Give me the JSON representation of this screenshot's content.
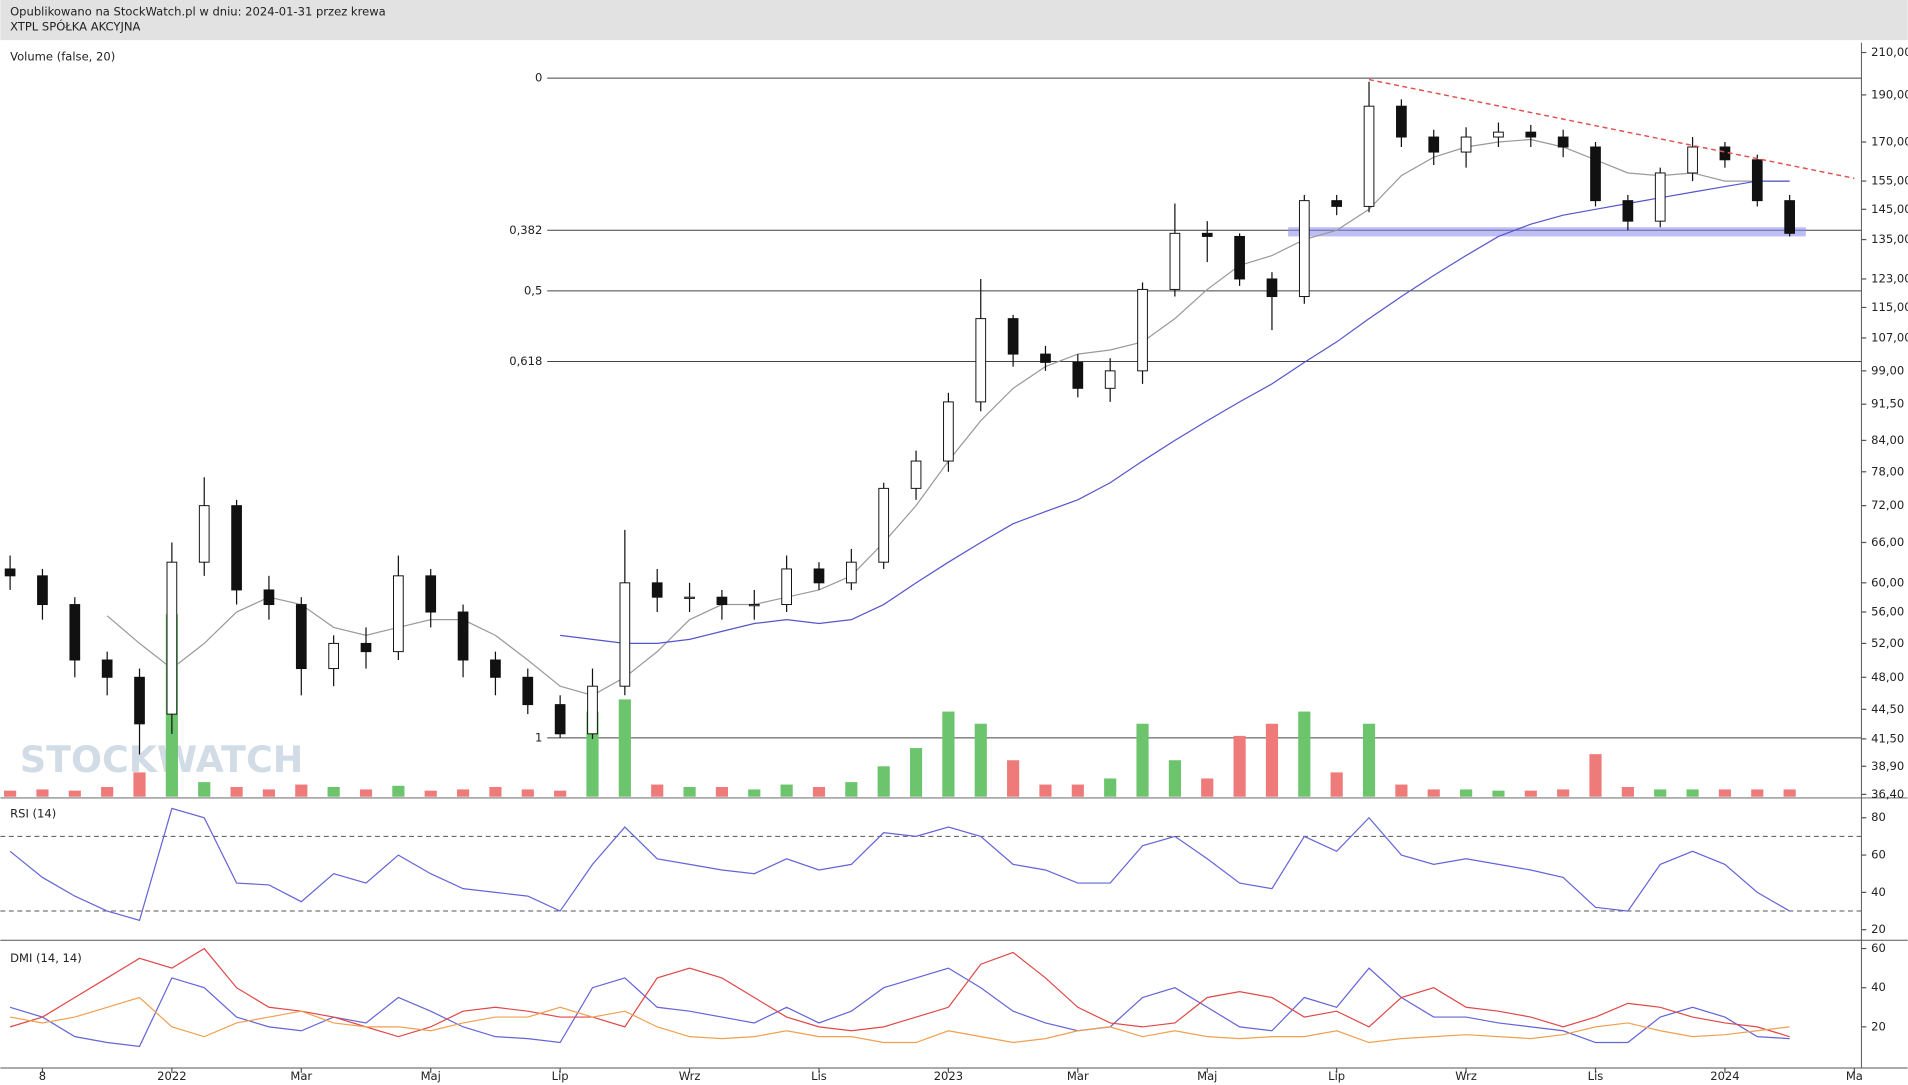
{
  "header": {
    "line1": "Opublikowano na StockWatch.pl w dniu: 2024-01-31 przez krewa",
    "line2": "XTPL SPÓŁKA AKCYJNA"
  },
  "watermark": "STOCKWATCH",
  "chart_data": [
    {
      "type": "candlestick",
      "categories": [
        null,
        "8",
        null,
        null,
        null,
        "2022",
        null,
        null,
        null,
        "Mar",
        null,
        null,
        null,
        "Maj",
        null,
        null,
        null,
        "Lip",
        null,
        null,
        null,
        "Wrz",
        null,
        null,
        null,
        "Lis",
        null,
        null,
        null,
        "2023",
        null,
        null,
        null,
        "Mar",
        null,
        null,
        null,
        "Maj",
        null,
        null,
        null,
        "Lip",
        null,
        null,
        null,
        "Wrz",
        null,
        null,
        null,
        "Lis",
        null,
        null,
        null,
        "2024",
        null,
        null,
        null,
        "Ma"
      ],
      "open": [
        62,
        61,
        57,
        50,
        48,
        44,
        63,
        72,
        59,
        57,
        49,
        52,
        51,
        61,
        56,
        50,
        48,
        45,
        42,
        47,
        60,
        58,
        58,
        57,
        57,
        62,
        60,
        63,
        75,
        80,
        92,
        112,
        103,
        101,
        95,
        99,
        120,
        137,
        136,
        123,
        118,
        148,
        146,
        185,
        172,
        166,
        172,
        174,
        172,
        168,
        148,
        141,
        158,
        168,
        163,
        148,
        null,
        null
      ],
      "high": [
        64,
        62,
        58,
        51,
        49,
        66,
        77,
        73,
        61,
        58,
        53,
        54,
        64,
        62,
        57,
        51,
        49,
        46,
        49,
        68,
        62,
        60,
        59,
        59,
        64,
        63,
        65,
        76,
        82,
        94,
        123,
        113,
        105,
        103,
        102,
        122,
        147,
        141,
        137,
        125,
        150,
        150,
        196,
        188,
        175,
        176,
        178,
        177,
        175,
        170,
        150,
        160,
        172,
        170,
        165,
        150,
        null,
        null
      ],
      "low": [
        59,
        55,
        48,
        46,
        40,
        42,
        61,
        57,
        55,
        46,
        47,
        49,
        50,
        54,
        48,
        46,
        44,
        41.6,
        41.5,
        46,
        56,
        56,
        55,
        55,
        56,
        59,
        59,
        62,
        73,
        78,
        90,
        100,
        99,
        93,
        92,
        96,
        118,
        128,
        121,
        109,
        116,
        143,
        144,
        168,
        161,
        160,
        168,
        168,
        164,
        146,
        138,
        139,
        155,
        160,
        146,
        136,
        null,
        null
      ],
      "close": [
        61,
        57,
        50,
        48,
        43,
        63,
        72,
        59,
        57,
        49,
        52,
        51,
        61,
        56,
        50,
        48,
        45,
        42,
        47,
        60,
        58,
        58,
        57,
        57,
        62,
        60,
        63,
        75,
        80,
        92,
        112,
        103,
        101,
        95,
        99,
        120,
        137,
        136,
        123,
        118,
        148,
        146,
        185,
        172,
        166,
        172,
        174,
        172,
        168,
        148,
        141,
        158,
        168,
        163,
        148,
        137,
        null,
        null
      ],
      "color": "#111111",
      "log_scale": true,
      "ylim": [
        36.2,
        215
      ],
      "yticks": [
        {
          "value": 210,
          "label": "210,00"
        },
        {
          "value": 190,
          "label": "190,00"
        },
        {
          "value": 170,
          "label": "170,00"
        },
        {
          "value": 155,
          "label": "155,00"
        },
        {
          "value": 145,
          "label": "145,00"
        },
        {
          "value": 135,
          "label": "135,00"
        },
        {
          "value": 123,
          "label": "123,00"
        },
        {
          "value": 115,
          "label": "115,00"
        },
        {
          "value": 107,
          "label": "107,00"
        },
        {
          "value": 99,
          "label": "99,00"
        },
        {
          "value": 91.5,
          "label": "91,50"
        },
        {
          "value": 84,
          "label": "84,00"
        },
        {
          "value": 78,
          "label": "78,00"
        },
        {
          "value": 72,
          "label": "72,00"
        },
        {
          "value": 66,
          "label": "66,00"
        },
        {
          "value": 60,
          "label": "60,00"
        },
        {
          "value": 56,
          "label": "56,00"
        },
        {
          "value": 52,
          "label": "52,00"
        },
        {
          "value": 48,
          "label": "48,00"
        },
        {
          "value": 44.5,
          "label": "44,50"
        },
        {
          "value": 41.5,
          "label": "41,50"
        },
        {
          "value": 38.9,
          "label": "38,90"
        },
        {
          "value": 36.4,
          "label": "36,40"
        }
      ],
      "overlays": [
        {
          "color": "#9a9a9a",
          "values": [
            null,
            null,
            null,
            55.5,
            52,
            49,
            52,
            56,
            58,
            57,
            54,
            53,
            54,
            55,
            55,
            53,
            50,
            47,
            46,
            48,
            51,
            55,
            57,
            57,
            58,
            59,
            61,
            66,
            72,
            80,
            88,
            95,
            100,
            103,
            104,
            106,
            112,
            120,
            127,
            130,
            135,
            138,
            145,
            157,
            164,
            168,
            170,
            171,
            168,
            163,
            158,
            157,
            158,
            155,
            155,
            155,
            null,
            null
          ]
        },
        {
          "color": "#5555cc",
          "values": [
            null,
            null,
            null,
            null,
            null,
            null,
            null,
            null,
            null,
            null,
            null,
            null,
            null,
            null,
            null,
            null,
            null,
            53,
            52.5,
            52,
            52,
            52.5,
            53.5,
            54.5,
            55,
            54.5,
            55,
            57,
            60,
            63,
            66,
            69,
            71,
            73,
            76,
            80,
            84,
            88,
            92,
            96,
            101,
            106,
            112,
            118,
            124,
            130,
            136,
            140,
            143,
            145,
            147,
            149,
            151,
            153,
            155,
            155,
            null,
            null
          ]
        }
      ],
      "fib_levels": [
        {
          "value": 197.7,
          "label": "0"
        },
        {
          "value": 138,
          "label": "0,382"
        },
        {
          "value": 119.6,
          "label": "0,5"
        },
        {
          "value": 101.2,
          "label": "0,618"
        },
        {
          "value": 41.6,
          "label": "1"
        }
      ],
      "fib_from": 16.6,
      "trendline": {
        "x": [
          42,
          57
        ],
        "y": [
          197,
          156
        ],
        "color": "#e05050"
      },
      "zone": {
        "x": [
          39.5,
          55.5
        ],
        "y": [
          136,
          139
        ],
        "color": "#8888ee"
      }
    },
    {
      "type": "bar",
      "title": "Volume (false, 20)",
      "values": [
        5,
        6,
        5,
        8,
        20,
        150,
        12,
        8,
        6,
        10,
        8,
        6,
        9,
        5,
        6,
        8,
        6,
        5,
        70,
        80,
        10,
        8,
        8,
        6,
        10,
        8,
        12,
        25,
        40,
        70,
        60,
        30,
        10,
        10,
        15,
        60,
        30,
        15,
        50,
        60,
        70,
        20,
        60,
        10,
        6,
        6,
        5,
        5,
        6,
        35,
        8,
        6,
        6,
        6,
        6,
        6,
        null,
        null
      ],
      "up_color": "#6cc46c",
      "down_color": "#ef7a7a",
      "ylim": [
        0,
        620
      ]
    },
    {
      "type": "line",
      "title": "RSI (14)",
      "series": [
        {
          "color": "#6464d8",
          "values": [
            62,
            48,
            38,
            30,
            25,
            85,
            80,
            45,
            44,
            35,
            50,
            45,
            60,
            50,
            42,
            40,
            38,
            30,
            55,
            75,
            58,
            55,
            52,
            50,
            58,
            52,
            55,
            72,
            70,
            75,
            70,
            55,
            52,
            45,
            45,
            65,
            70,
            58,
            45,
            42,
            70,
            62,
            80,
            60,
            55,
            58,
            55,
            52,
            48,
            32,
            30,
            55,
            62,
            55,
            40,
            30,
            null,
            null
          ]
        }
      ],
      "ylim": [
        15,
        88
      ],
      "yticks": [
        20,
        40,
        60,
        80
      ],
      "levels": [
        30,
        70
      ]
    },
    {
      "type": "line",
      "title": "DMI (14, 14)",
      "series": [
        {
          "color": "#6464d8",
          "values": [
            30,
            25,
            15,
            12,
            10,
            45,
            40,
            25,
            20,
            18,
            25,
            22,
            35,
            28,
            20,
            15,
            14,
            12,
            40,
            45,
            30,
            28,
            25,
            22,
            30,
            22,
            28,
            40,
            45,
            50,
            40,
            28,
            22,
            18,
            20,
            35,
            40,
            30,
            20,
            18,
            35,
            30,
            50,
            35,
            25,
            25,
            22,
            20,
            18,
            12,
            12,
            25,
            30,
            25,
            15,
            14,
            null,
            null
          ]
        },
        {
          "color": "#e04848",
          "values": [
            20,
            25,
            35,
            45,
            55,
            50,
            60,
            40,
            30,
            28,
            25,
            20,
            15,
            20,
            28,
            30,
            28,
            25,
            25,
            20,
            45,
            50,
            45,
            35,
            25,
            20,
            18,
            20,
            25,
            30,
            52,
            58,
            45,
            30,
            22,
            20,
            22,
            35,
            38,
            35,
            25,
            28,
            20,
            35,
            40,
            30,
            28,
            25,
            20,
            25,
            32,
            30,
            25,
            22,
            20,
            15,
            null,
            null
          ]
        },
        {
          "color": "#f0a050",
          "values": [
            25,
            22,
            25,
            30,
            35,
            20,
            15,
            22,
            25,
            28,
            22,
            20,
            20,
            18,
            22,
            25,
            25,
            30,
            25,
            28,
            20,
            15,
            14,
            15,
            18,
            15,
            15,
            12,
            12,
            18,
            15,
            12,
            14,
            18,
            20,
            15,
            18,
            15,
            14,
            15,
            15,
            18,
            12,
            14,
            15,
            16,
            15,
            14,
            16,
            20,
            22,
            18,
            15,
            16,
            18,
            20,
            null,
            null
          ]
        }
      ],
      "ylim": [
        -1,
        63
      ],
      "yticks": [
        20,
        40,
        60
      ]
    }
  ]
}
